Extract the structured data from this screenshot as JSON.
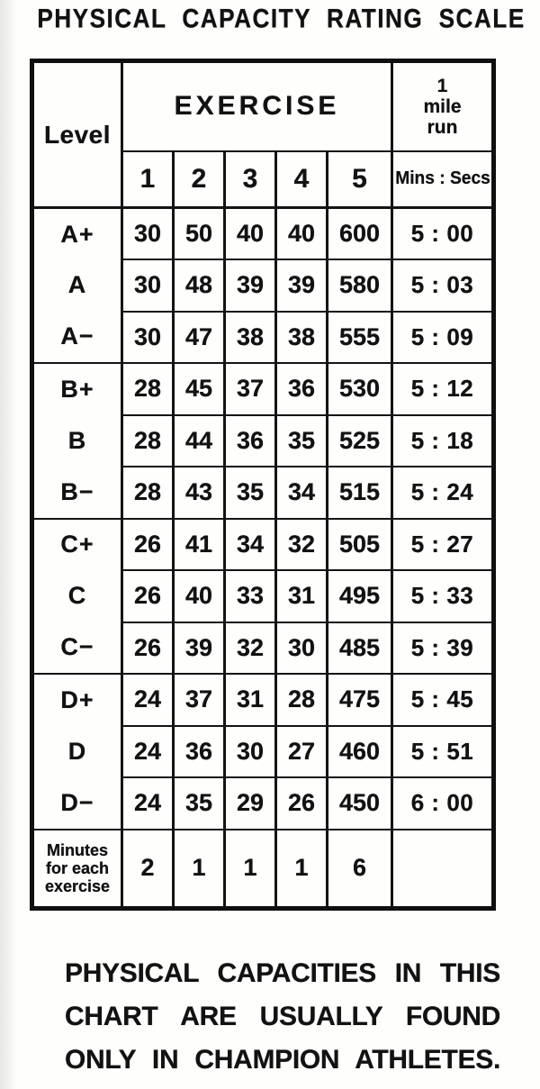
{
  "title": "PHYSICAL CAPACITY RATING SCALE",
  "table": {
    "header": {
      "level": "Level",
      "exercise": "EXERCISE",
      "run_line1": "1",
      "run_line2": "mile",
      "run_line3": "run",
      "exercise_cols": [
        "1",
        "2",
        "3",
        "4",
        "5"
      ],
      "run_units": "Mins : Secs"
    },
    "rows": [
      {
        "level": "A+",
        "values": [
          "30",
          "50",
          "40",
          "40",
          "600"
        ],
        "run": "5 : 00",
        "group_end": false
      },
      {
        "level": "A",
        "values": [
          "30",
          "48",
          "39",
          "39",
          "580"
        ],
        "run": "5 : 03",
        "group_end": false
      },
      {
        "level": "A−",
        "values": [
          "30",
          "47",
          "38",
          "38",
          "555"
        ],
        "run": "5 : 09",
        "group_end": true
      },
      {
        "level": "B+",
        "values": [
          "28",
          "45",
          "37",
          "36",
          "530"
        ],
        "run": "5 : 12",
        "group_end": false
      },
      {
        "level": "B",
        "values": [
          "28",
          "44",
          "36",
          "35",
          "525"
        ],
        "run": "5 : 18",
        "group_end": false
      },
      {
        "level": "B−",
        "values": [
          "28",
          "43",
          "35",
          "34",
          "515"
        ],
        "run": "5 : 24",
        "group_end": true
      },
      {
        "level": "C+",
        "values": [
          "26",
          "41",
          "34",
          "32",
          "505"
        ],
        "run": "5 : 27",
        "group_end": false
      },
      {
        "level": "C",
        "values": [
          "26",
          "40",
          "33",
          "31",
          "495"
        ],
        "run": "5 : 33",
        "group_end": false
      },
      {
        "level": "C−",
        "values": [
          "26",
          "39",
          "32",
          "30",
          "485"
        ],
        "run": "5 : 39",
        "group_end": true
      },
      {
        "level": "D+",
        "values": [
          "24",
          "37",
          "31",
          "28",
          "475"
        ],
        "run": "5 : 45",
        "group_end": false
      },
      {
        "level": "D",
        "values": [
          "24",
          "36",
          "30",
          "27",
          "460"
        ],
        "run": "5 : 51",
        "group_end": false
      },
      {
        "level": "D−",
        "values": [
          "24",
          "35",
          "29",
          "26",
          "450"
        ],
        "run": "6 : 00",
        "group_end": true
      }
    ],
    "footer_row": {
      "label_line1": "Minutes",
      "label_line2": "for each",
      "label_line3": "exercise",
      "values": [
        "2",
        "1",
        "1",
        "1",
        "6"
      ],
      "run": ""
    }
  },
  "caption": {
    "line1": "PHYSICAL CAPACITIES IN THIS",
    "line2": "CHART ARE USUALLY FOUND",
    "line3": "ONLY IN CHAMPION ATHLETES."
  }
}
